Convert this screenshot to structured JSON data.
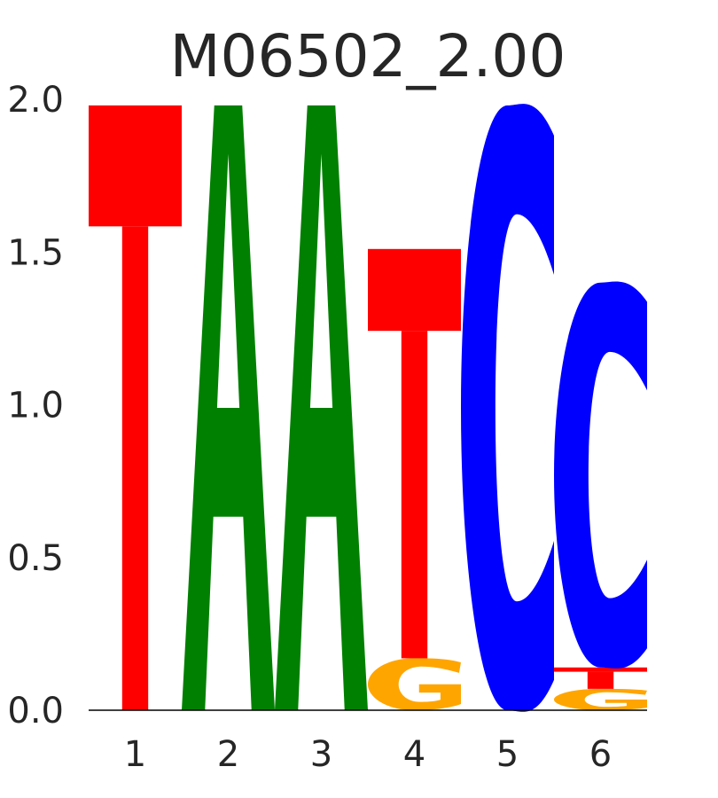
{
  "chart_data": {
    "type": "sequence-logo",
    "title": "M06502_2.00",
    "xlabel": "",
    "ylabel": "",
    "ylim": [
      0,
      2.0
    ],
    "yticks": [
      "0.0",
      "0.5",
      "1.0",
      "1.5",
      "2.0"
    ],
    "positions": [
      "1",
      "2",
      "3",
      "4",
      "5",
      "6"
    ],
    "colors": {
      "A": "#008000",
      "C": "#0000ff",
      "G": "#ffa500",
      "T": "#ff0000"
    },
    "stacks": [
      [
        {
          "letter": "T",
          "height": 1.98
        }
      ],
      [
        {
          "letter": "A",
          "height": 1.98
        }
      ],
      [
        {
          "letter": "A",
          "height": 1.98
        }
      ],
      [
        {
          "letter": "G",
          "height": 0.17
        },
        {
          "letter": "T",
          "height": 1.34
        }
      ],
      [
        {
          "letter": "C",
          "height": 1.98
        }
      ],
      [
        {
          "letter": "G",
          "height": 0.07
        },
        {
          "letter": "T",
          "height": 0.07
        },
        {
          "letter": "C",
          "height": 1.26
        }
      ]
    ]
  }
}
